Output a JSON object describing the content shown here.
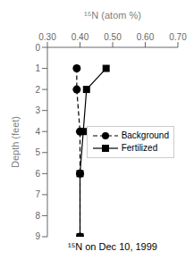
{
  "chart_data": {
    "type": "line",
    "xlabel": "¹⁵N (atom %)",
    "ylabel": "Depth (feet)",
    "annotations": [
      "¹⁵N on Dec 10, 1999"
    ],
    "series": [
      {
        "name": "Background",
        "color": "black",
        "marker": "circle",
        "line_style": "dashed",
        "x": [
          0.39,
          0.39,
          0.4,
          0.4,
          0.4
        ],
        "y": [
          1,
          2,
          4,
          6,
          9
        ]
      },
      {
        "name": "Fertilized",
        "color": "black",
        "marker": "square",
        "line_style": "solid",
        "x": [
          0.48,
          0.42,
          0.41,
          0.4,
          0.4
        ],
        "y": [
          1,
          2,
          4,
          6,
          9
        ]
      }
    ],
    "xlim": [
      0.3,
      0.7
    ],
    "ylim": [
      9,
      0
    ],
    "xticks": [
      {
        "value": 0.3,
        "label": "0.30"
      },
      {
        "value": 0.4,
        "label": "0.40"
      },
      {
        "value": 0.5,
        "label": "0.50"
      },
      {
        "value": 0.6,
        "label": "0.60"
      },
      {
        "value": 0.7,
        "label": "0.70"
      }
    ],
    "yticks": [
      0,
      1,
      2,
      3,
      4,
      5,
      6,
      7,
      8,
      9
    ],
    "grid": false,
    "legend": "right"
  }
}
